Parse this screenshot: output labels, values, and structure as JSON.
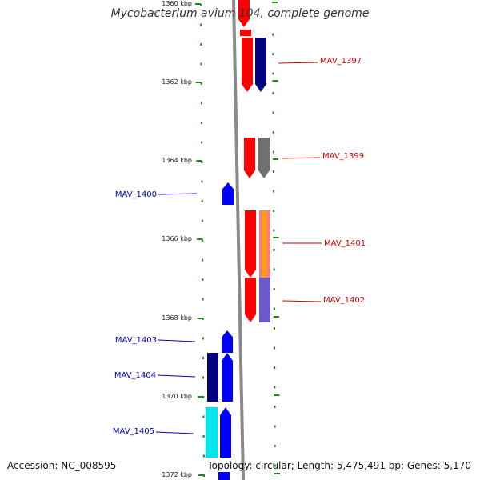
{
  "header": {
    "title": "Mycobacterium avium 104, complete genome"
  },
  "footer": {
    "accession": "Accession: NC_008595",
    "topology": "Topology: circular; Length: 5,475,491 bp; Genes: 5,170"
  },
  "colors": {
    "backbone": "#8a8a8a",
    "tick": "#1a8a1a",
    "forward_label": "#0000cc",
    "reverse_label": "#cc0000",
    "gene_red": "#ff0000",
    "gene_navy": "#000080",
    "gene_blue": "#0000ff",
    "gene_gray": "#707070",
    "gene_cyan": "#00e5ee",
    "gene_orange": "#ffa000",
    "gene_salmon": "#f08080",
    "gene_slate": "#6a5acd"
  },
  "scale": {
    "unit": "kbp",
    "labels": [
      "1360 kbp",
      "1362 kbp",
      "1364 kbp",
      "1366 kbp",
      "1368 kbp",
      "1370 kbp",
      "1372 kbp"
    ]
  },
  "genes": [
    {
      "id": "MAV_1397",
      "strand": "reverse"
    },
    {
      "id": "MAV_1399",
      "strand": "reverse"
    },
    {
      "id": "MAV_1400",
      "strand": "forward"
    },
    {
      "id": "MAV_1401",
      "strand": "reverse"
    },
    {
      "id": "MAV_1402",
      "strand": "reverse"
    },
    {
      "id": "MAV_1403",
      "strand": "forward"
    },
    {
      "id": "MAV_1404",
      "strand": "forward"
    },
    {
      "id": "MAV_1405",
      "strand": "forward"
    }
  ]
}
